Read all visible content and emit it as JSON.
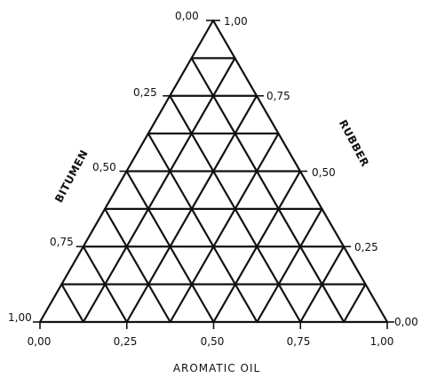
{
  "diagram": {
    "type": "ternary-grid",
    "divisions": 8,
    "axes": {
      "bitumen": {
        "title": "BITUMEN",
        "ticks": [
          "0,00",
          "0,25",
          "0,50",
          "0,75",
          "1,00"
        ]
      },
      "rubber": {
        "title": "RUBBER",
        "ticks": [
          "1,00",
          "0,75",
          "0,50",
          "0,25",
          "0,00"
        ]
      },
      "aromatic_oil": {
        "title": "AROMATIC OIL",
        "ticks": [
          "0,00",
          "0,25",
          "0,50",
          "0,75",
          "1,00"
        ]
      }
    }
  }
}
